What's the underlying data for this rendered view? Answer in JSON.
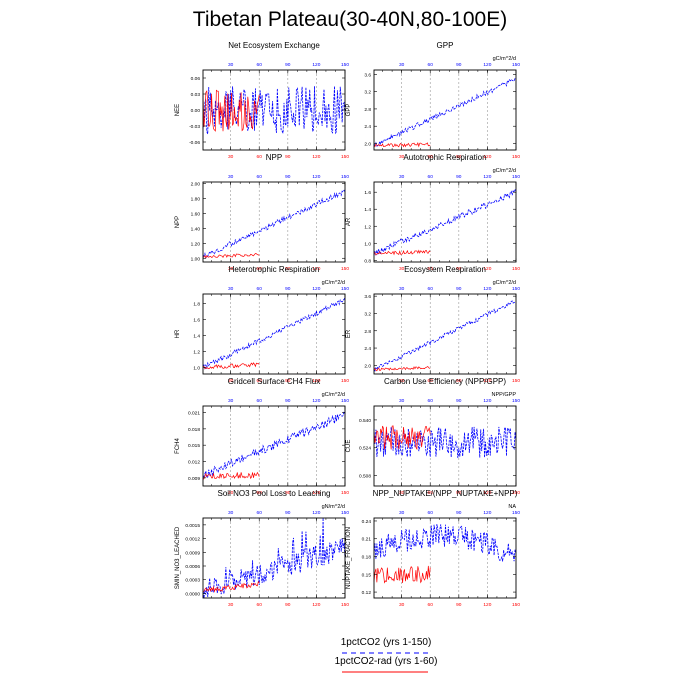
{
  "page": {
    "title": "Tibetan Plateau(30-40N,80-100E)"
  },
  "legend": {
    "entries": [
      {
        "label": "1pctCO2 (yrs 1-150)",
        "color": "#0000ff",
        "style": "dashed"
      },
      {
        "label": "1pctCO2-rad (yrs 1-60)",
        "color": "#ff0000",
        "style": "solid"
      }
    ]
  },
  "colors": {
    "series_a": "#0000ff",
    "series_b": "#ff0000",
    "grid": "#999999"
  },
  "chart_data": [
    {
      "type": "line",
      "title": "Net Ecosystem Exchange",
      "units": "",
      "ylabel": "NEE",
      "xlim": [
        1,
        150
      ],
      "ylim": [
        -0.075,
        0.075
      ],
      "yticks": [
        -0.06,
        -0.03,
        0.0,
        0.03,
        0.06
      ],
      "ytick_labels": [
        "-0.06",
        "-0.03",
        "0.00",
        "0.03",
        "0.06"
      ],
      "bottom_xticks": [
        30,
        60,
        90,
        120,
        150
      ],
      "top_xticks": [
        30,
        60,
        90,
        120,
        150
      ],
      "grid_x": [
        30,
        60,
        90,
        120
      ],
      "series": [
        {
          "kind": "a",
          "n": 150,
          "start": 0.0,
          "end": 0.0,
          "noise": 0.045,
          "seed": 11
        },
        {
          "kind": "b",
          "n": 60,
          "start": 0.0,
          "end": 0.0,
          "noise": 0.04,
          "seed": 12
        }
      ]
    },
    {
      "type": "line",
      "title": "GPP",
      "units": "gC/m^2/d",
      "ylabel": "GPP",
      "xlim": [
        1,
        150
      ],
      "ylim": [
        1.85,
        3.7
      ],
      "yticks": [
        2.0,
        2.4,
        2.8,
        3.2,
        3.6
      ],
      "ytick_labels": [
        "2.0",
        "2.4",
        "2.8",
        "3.2",
        "3.6"
      ],
      "bottom_xticks": [
        30,
        60,
        90,
        120,
        150
      ],
      "top_xticks": [
        30,
        60,
        90,
        120,
        150
      ],
      "grid_x": [
        30,
        60,
        90,
        120
      ],
      "series": [
        {
          "kind": "a",
          "n": 150,
          "start": 1.95,
          "end": 3.5,
          "noise": 0.06,
          "seed": 21
        },
        {
          "kind": "b",
          "n": 60,
          "start": 1.95,
          "end": 1.98,
          "noise": 0.04,
          "seed": 22
        }
      ]
    },
    {
      "type": "line",
      "title": "NPP",
      "units": "",
      "ylabel": "NPP",
      "xlim": [
        1,
        150
      ],
      "ylim": [
        0.95,
        2.02
      ],
      "yticks": [
        1.0,
        1.2,
        1.4,
        1.6,
        1.8,
        2.0
      ],
      "ytick_labels": [
        "1.00",
        "1.20",
        "1.40",
        "1.60",
        "1.80",
        "2.00"
      ],
      "bottom_xticks": [
        30,
        60,
        90,
        120,
        150
      ],
      "top_xticks": [
        30,
        60,
        90,
        120,
        150
      ],
      "grid_x": [
        30,
        60,
        90,
        120
      ],
      "series": [
        {
          "kind": "a",
          "n": 150,
          "start": 1.02,
          "end": 1.9,
          "noise": 0.035,
          "seed": 31
        },
        {
          "kind": "b",
          "n": 60,
          "start": 1.02,
          "end": 1.05,
          "noise": 0.02,
          "seed": 32
        }
      ]
    },
    {
      "type": "line",
      "title": "Autotrophic Respiration",
      "units": "gC/m^2/d",
      "ylabel": "AR",
      "xlim": [
        1,
        150
      ],
      "ylim": [
        0.78,
        1.72
      ],
      "yticks": [
        0.8,
        1.0,
        1.2,
        1.4,
        1.6
      ],
      "ytick_labels": [
        "0.8",
        "1.0",
        "1.2",
        "1.4",
        "1.6"
      ],
      "bottom_xticks": [
        30,
        60,
        90,
        120,
        150
      ],
      "top_xticks": [
        30,
        60,
        90,
        120,
        150
      ],
      "grid_x": [
        30,
        60,
        90,
        120
      ],
      "series": [
        {
          "kind": "a",
          "n": 150,
          "start": 0.88,
          "end": 1.6,
          "noise": 0.035,
          "seed": 41
        },
        {
          "kind": "b",
          "n": 60,
          "start": 0.88,
          "end": 0.9,
          "noise": 0.02,
          "seed": 42
        }
      ]
    },
    {
      "type": "line",
      "title": "Heterotrophic Respiration",
      "units": "gC/m^2/d",
      "ylabel": "HR",
      "xlim": [
        1,
        150
      ],
      "ylim": [
        0.92,
        1.92
      ],
      "yticks": [
        1.0,
        1.2,
        1.4,
        1.6,
        1.8
      ],
      "ytick_labels": [
        "1.0",
        "1.2",
        "1.4",
        "1.6",
        "1.8"
      ],
      "bottom_xticks": [
        30,
        60,
        90,
        120,
        150
      ],
      "top_xticks": [
        30,
        60,
        90,
        120,
        150
      ],
      "grid_x": [
        30,
        60,
        90,
        120
      ],
      "series": [
        {
          "kind": "a",
          "n": 150,
          "start": 1.0,
          "end": 1.85,
          "noise": 0.03,
          "seed": 51
        },
        {
          "kind": "b",
          "n": 60,
          "start": 1.0,
          "end": 1.04,
          "noise": 0.025,
          "seed": 52
        }
      ]
    },
    {
      "type": "line",
      "title": "Ecosystem Respiration",
      "units": "gC/m^2/d",
      "ylabel": "ER",
      "xlim": [
        1,
        150
      ],
      "ylim": [
        1.8,
        3.65
      ],
      "yticks": [
        2.0,
        2.4,
        2.8,
        3.2,
        3.6
      ],
      "ytick_labels": [
        "2.0",
        "2.4",
        "2.8",
        "3.2",
        "3.6"
      ],
      "bottom_xticks": [
        30,
        60,
        90,
        120,
        150
      ],
      "top_xticks": [
        30,
        60,
        90,
        120,
        150
      ],
      "grid_x": [
        30,
        60,
        90,
        120
      ],
      "series": [
        {
          "kind": "a",
          "n": 150,
          "start": 1.9,
          "end": 3.5,
          "noise": 0.05,
          "seed": 61
        },
        {
          "kind": "b",
          "n": 60,
          "start": 1.9,
          "end": 1.95,
          "noise": 0.03,
          "seed": 62
        }
      ]
    },
    {
      "type": "line",
      "title": "Gridcell Surface CH4 Flux",
      "units": "gC/m^2/d",
      "ylabel": "FCH4",
      "xlim": [
        1,
        150
      ],
      "ylim": [
        0.0075,
        0.0222
      ],
      "yticks": [
        0.009,
        0.012,
        0.015,
        0.018,
        0.021
      ],
      "ytick_labels": [
        "0.009",
        "0.012",
        "0.015",
        "0.018",
        "0.021"
      ],
      "bottom_xticks": [
        30,
        60,
        90,
        120,
        150
      ],
      "top_xticks": [
        30,
        60,
        90,
        120,
        150
      ],
      "grid_x": [
        30,
        60,
        90,
        120
      ],
      "series": [
        {
          "kind": "a",
          "n": 150,
          "start": 0.0095,
          "end": 0.0205,
          "noise": 0.0008,
          "seed": 71
        },
        {
          "kind": "b",
          "n": 60,
          "start": 0.0093,
          "end": 0.0095,
          "noise": 0.0006,
          "seed": 72
        }
      ]
    },
    {
      "type": "line",
      "title": "Carbon Use Efficiency (NPP/GPP)",
      "units": "NPP/GPP",
      "ylabel": "CUE",
      "xlim": [
        1,
        150
      ],
      "ylim": [
        0.502,
        0.548
      ],
      "yticks": [
        0.508,
        0.524,
        0.54
      ],
      "ytick_labels": [
        "0.508",
        "0.524",
        "0.540"
      ],
      "bottom_xticks": [
        30,
        60,
        90,
        120,
        150
      ],
      "top_xticks": [
        30,
        60,
        90,
        120,
        150
      ],
      "grid_x": [
        30,
        60,
        90,
        120
      ],
      "series": [
        {
          "kind": "a",
          "n": 150,
          "start": 0.527,
          "end": 0.527,
          "noise": 0.009,
          "seed": 81
        },
        {
          "kind": "b",
          "n": 60,
          "start": 0.53,
          "end": 0.53,
          "noise": 0.007,
          "seed": 82
        }
      ]
    },
    {
      "type": "line",
      "title": "Soil NO3 Pool Loss to Leaching",
      "units": "gN/m^2/d",
      "ylabel": "SMIN_NO3_LEACHED",
      "xlim": [
        1,
        150
      ],
      "ylim": [
        -0.0001,
        0.00165
      ],
      "yticks": [
        0.0,
        0.0003,
        0.0006,
        0.0009,
        0.0012,
        0.0015
      ],
      "ytick_labels": [
        "0.0000",
        "0.0003",
        "0.0006",
        "0.0009",
        "0.0012",
        "0.0015"
      ],
      "bottom_xticks": [
        30,
        60,
        90,
        120,
        150
      ],
      "top_xticks": [
        30,
        60,
        90,
        120,
        150
      ],
      "grid_x": [
        30,
        60,
        90,
        120
      ],
      "series": [
        {
          "kind": "a",
          "n": 150,
          "start": 5e-05,
          "end": 0.001,
          "noise": 0.00025,
          "seed": 91,
          "spiky": true
        },
        {
          "kind": "b",
          "n": 60,
          "start": 5e-05,
          "end": 0.0002,
          "noise": 6e-05,
          "seed": 92
        }
      ]
    },
    {
      "type": "line",
      "title": "NPP_NUPTAKE/(NPP_NUPTAKE+NPP)",
      "units": "NA",
      "ylabel": "NUPTAKE_FRACTION",
      "xlim": [
        1,
        150
      ],
      "ylim": [
        0.11,
        0.245
      ],
      "yticks": [
        0.12,
        0.15,
        0.18,
        0.21,
        0.24
      ],
      "ytick_labels": [
        "0.12",
        "0.15",
        "0.18",
        "0.21",
        "0.24"
      ],
      "bottom_xticks": [
        30,
        60,
        90,
        120,
        150
      ],
      "top_xticks": [
        30,
        60,
        90,
        120,
        150
      ],
      "grid_x": [
        30,
        60,
        90,
        120
      ],
      "series": [
        {
          "kind": "a",
          "n": 150,
          "start": 0.19,
          "end": 0.18,
          "noise": 0.02,
          "seed": 101,
          "hump": true
        },
        {
          "kind": "b",
          "n": 60,
          "start": 0.15,
          "end": 0.15,
          "noise": 0.015,
          "seed": 102
        }
      ]
    }
  ]
}
